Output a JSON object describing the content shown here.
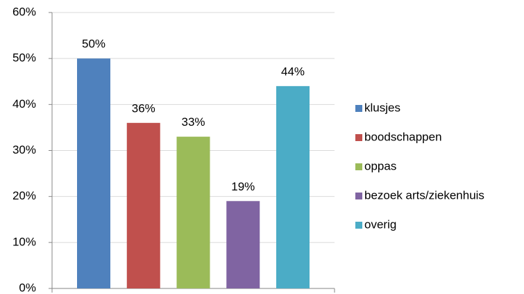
{
  "chart_data": {
    "type": "bar",
    "categories": [
      null
    ],
    "series": [
      {
        "name": "klusjes",
        "color": "#4f81bd",
        "values": [
          50
        ],
        "value_labels": [
          "50%"
        ]
      },
      {
        "name": "boodschappen",
        "color": "#c0504d",
        "values": [
          36
        ],
        "value_labels": [
          "36%"
        ]
      },
      {
        "name": "oppas",
        "color": "#9bbb59",
        "values": [
          33
        ],
        "value_labels": [
          "33%"
        ]
      },
      {
        "name": "bezoek arts/ziekenhuis",
        "color": "#8064a2",
        "values": [
          19
        ],
        "value_labels": [
          "19%"
        ]
      },
      {
        "name": "overig",
        "color": "#4bacc6",
        "values": [
          44
        ],
        "value_labels": [
          "44%"
        ]
      }
    ],
    "ylim": [
      0,
      60
    ],
    "yticks": [
      {
        "value": 0,
        "label": "0%"
      },
      {
        "value": 10,
        "label": "10%"
      },
      {
        "value": 20,
        "label": "20%"
      },
      {
        "value": 30,
        "label": "30%"
      },
      {
        "value": 40,
        "label": "40%"
      },
      {
        "value": 50,
        "label": "50%"
      },
      {
        "value": 60,
        "label": "60%"
      }
    ],
    "grid": true,
    "legend": "right"
  }
}
